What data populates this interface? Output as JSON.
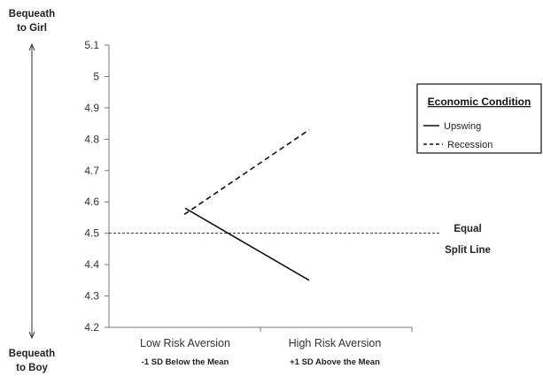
{
  "chart_data": {
    "type": "line",
    "categories": [
      "Low Risk Aversion",
      "High Risk Aversion"
    ],
    "category_sublabels": [
      "-1 SD Below the Mean",
      "+1 SD Above the Mean"
    ],
    "series": [
      {
        "name": "Upswing",
        "style": "solid",
        "values": [
          4.58,
          4.35
        ]
      },
      {
        "name": "Recession",
        "style": "dashed",
        "values": [
          4.56,
          4.83
        ]
      }
    ],
    "ylim": [
      4.2,
      5.1
    ],
    "yticks": [
      "4.2",
      "4.3",
      "4.4",
      "4.5",
      "4.6",
      "4.7",
      "4.8",
      "4.9",
      "5",
      "5.1"
    ],
    "reference_line": {
      "value": 4.5,
      "label_line1": "Equal",
      "label_line2": "Split Line"
    },
    "legend": {
      "title": "Economic Condition",
      "placement": "right"
    },
    "y_top_label": [
      "Bequeath",
      "to Girl"
    ],
    "y_bottom_label": [
      "Bequeath",
      "to Boy"
    ],
    "grid": false
  }
}
